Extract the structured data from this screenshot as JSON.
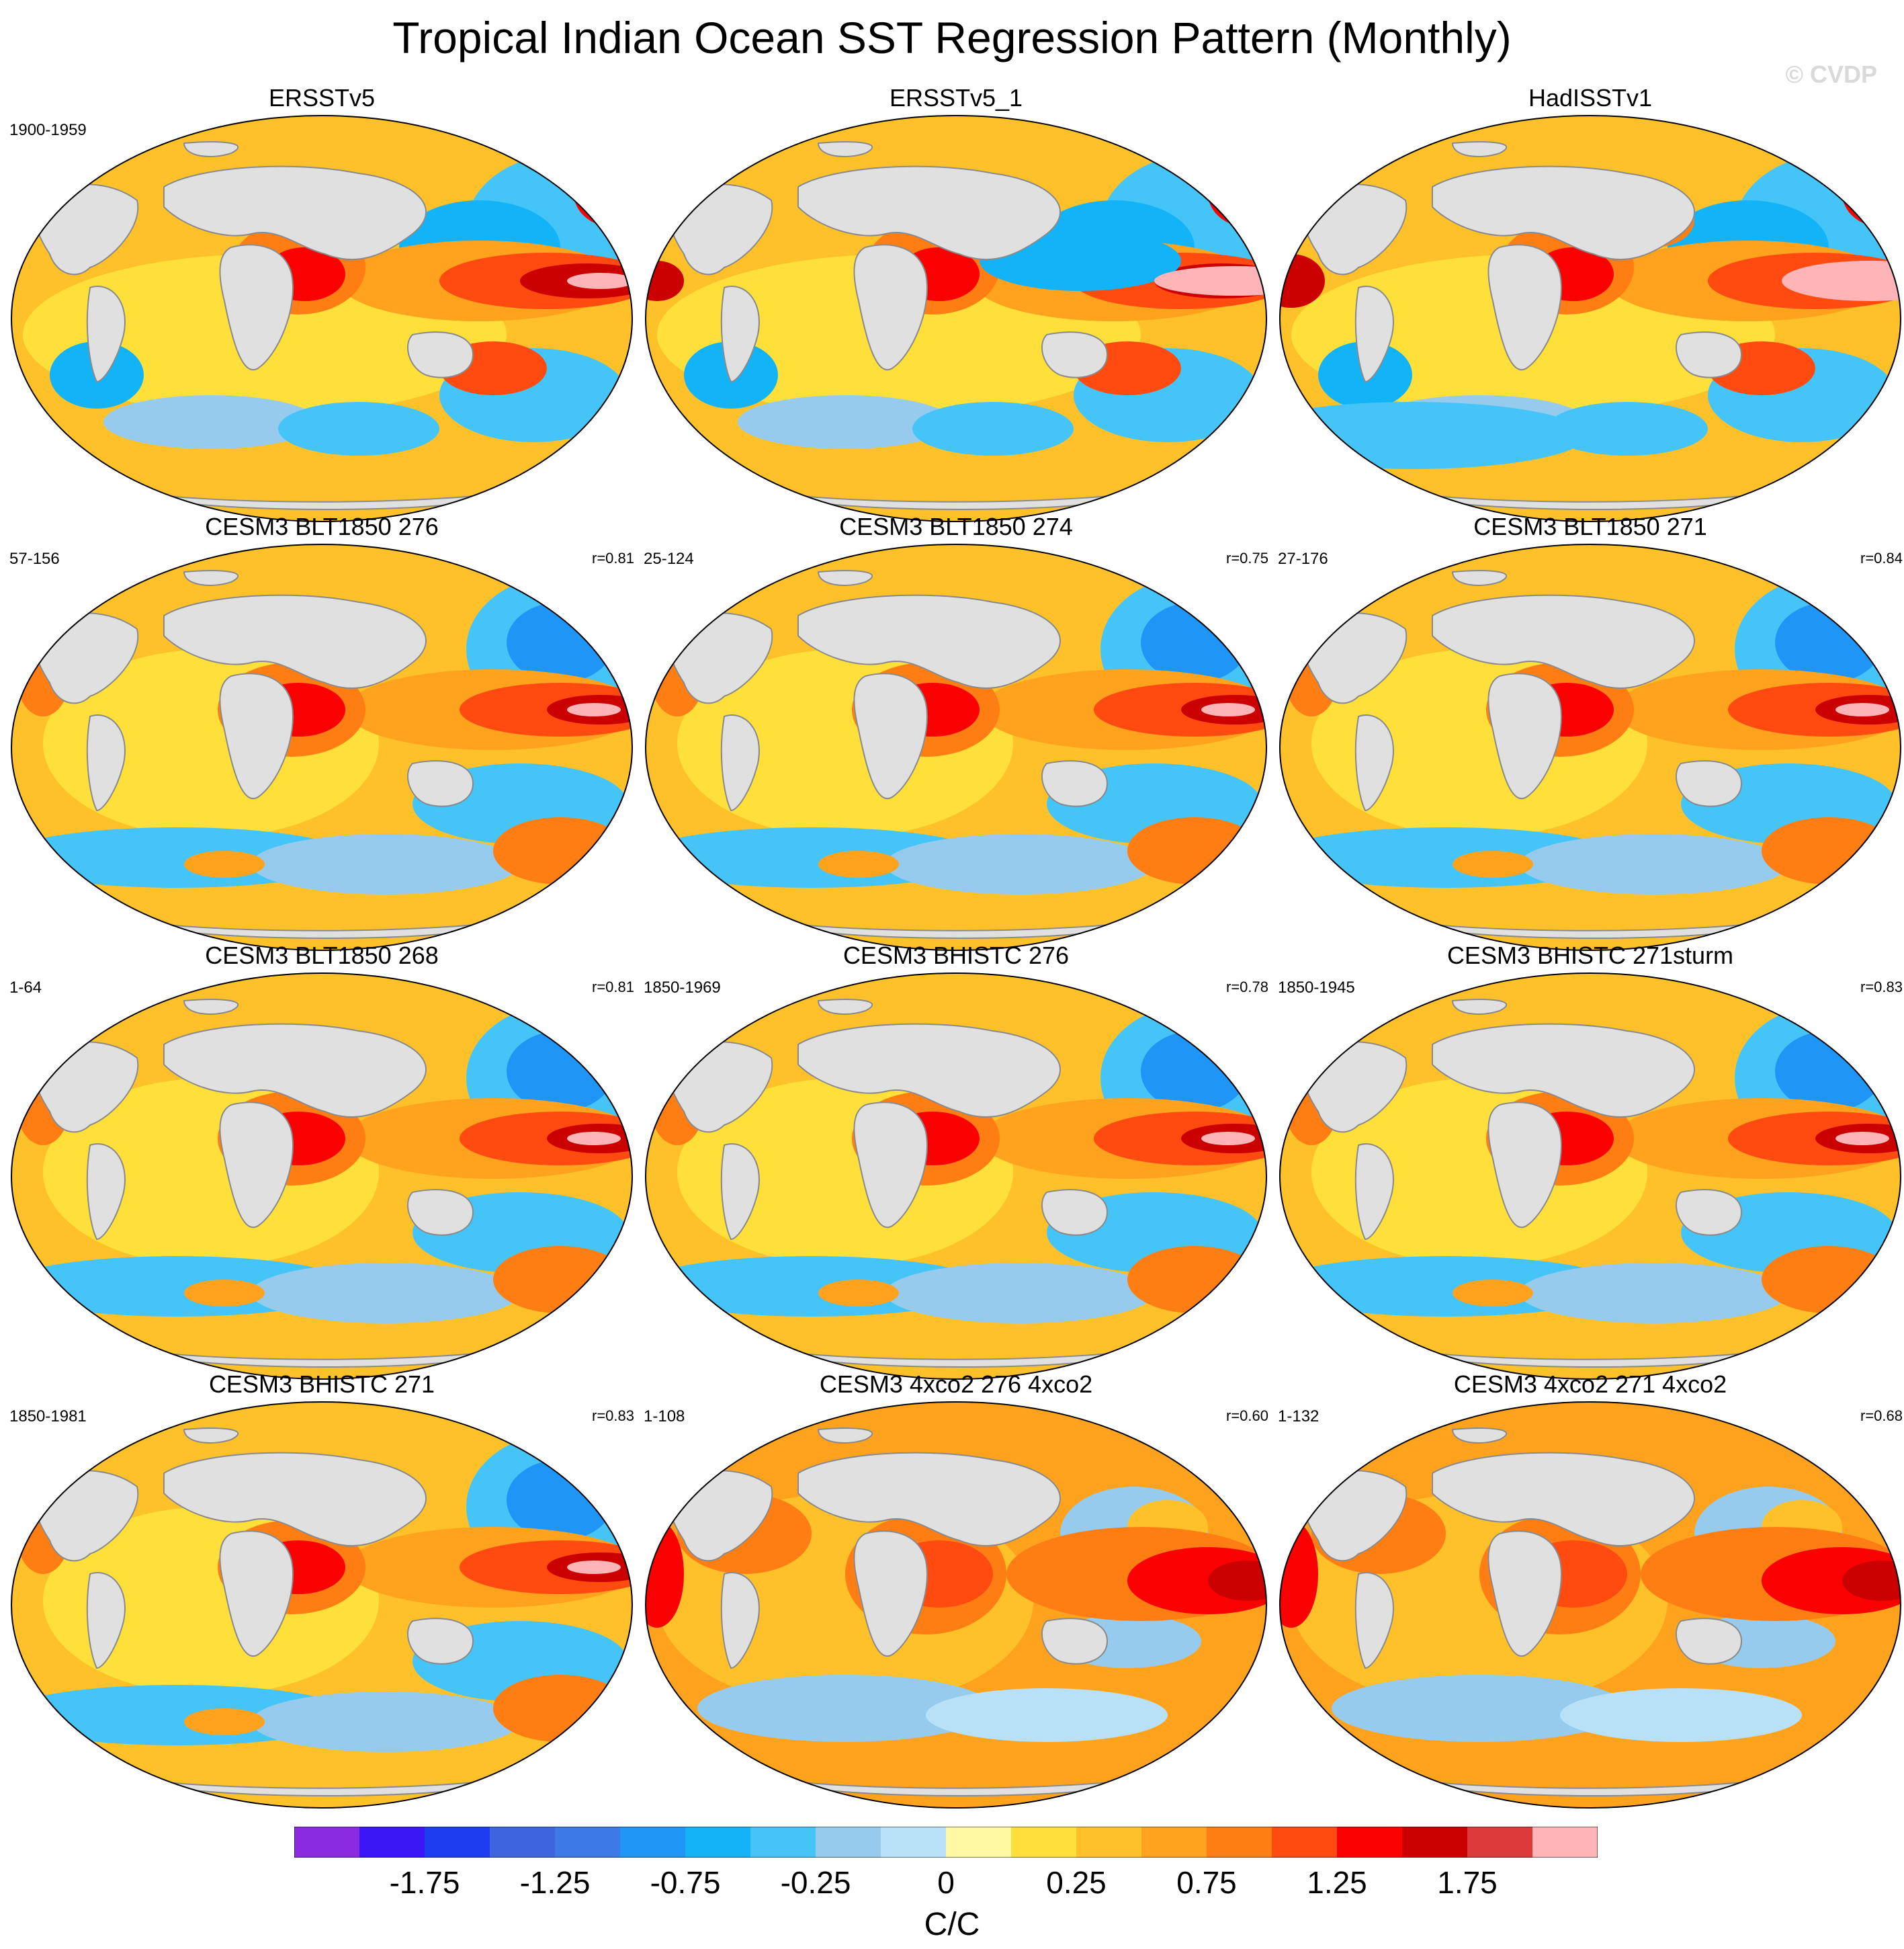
{
  "title": "Tropical Indian Ocean SST Regression Pattern (Monthly)",
  "watermark": "© CVDP",
  "panels": [
    {
      "title": "ERSSTv5",
      "period": "1900-1959",
      "corr": "",
      "pattern": "obs1"
    },
    {
      "title": "ERSSTv5_1",
      "period": "",
      "corr": "",
      "pattern": "obs2"
    },
    {
      "title": "HadISSTv1",
      "period": "",
      "corr": "",
      "pattern": "obs3"
    },
    {
      "title": "CESM3 BLT1850 276",
      "period": "57-156",
      "corr": "r=0.81",
      "pattern": "mod"
    },
    {
      "title": "CESM3 BLT1850 274",
      "period": "25-124",
      "corr": "r=0.75",
      "pattern": "mod"
    },
    {
      "title": "CESM3 BLT1850 271",
      "period": "27-176",
      "corr": "r=0.84",
      "pattern": "mod"
    },
    {
      "title": "CESM3 BLT1850 268",
      "period": "1-64",
      "corr": "r=0.81",
      "pattern": "mod"
    },
    {
      "title": "CESM3 BHISTC 276",
      "period": "1850-1969",
      "corr": "r=0.78",
      "pattern": "mod"
    },
    {
      "title": "CESM3 BHISTC 271sturm",
      "period": "1850-1945",
      "corr": "r=0.83",
      "pattern": "mod"
    },
    {
      "title": "CESM3 BHISTC 271",
      "period": "1850-1981",
      "corr": "r=0.83",
      "pattern": "mod"
    },
    {
      "title": "CESM3 4xco2 276 4xco2",
      "period": "1-108",
      "corr": "r=0.60",
      "pattern": "warm"
    },
    {
      "title": "CESM3 4xco2 271 4xco2",
      "period": "1-132",
      "corr": "r=0.68",
      "pattern": "warm"
    }
  ],
  "colorbar": {
    "colors": [
      "#8a2be2",
      "#3b17f5",
      "#1e3cf0",
      "#3e64e0",
      "#3d7ae8",
      "#1f96f5",
      "#13b4f7",
      "#45c5f7",
      "#96cbee",
      "#b8e1f8",
      "#fff8a2",
      "#ffe03b",
      "#ffc12a",
      "#ffa31f",
      "#ff7e14",
      "#ff4a10",
      "#fb0000",
      "#cb0000",
      "#dd3b3b",
      "#ffb5b8"
    ],
    "labels": [
      "-1.75",
      "-1.25",
      "-0.75",
      "-0.25",
      "0",
      "0.25",
      "0.75",
      "1.25",
      "1.75"
    ],
    "units": "C/C"
  }
}
